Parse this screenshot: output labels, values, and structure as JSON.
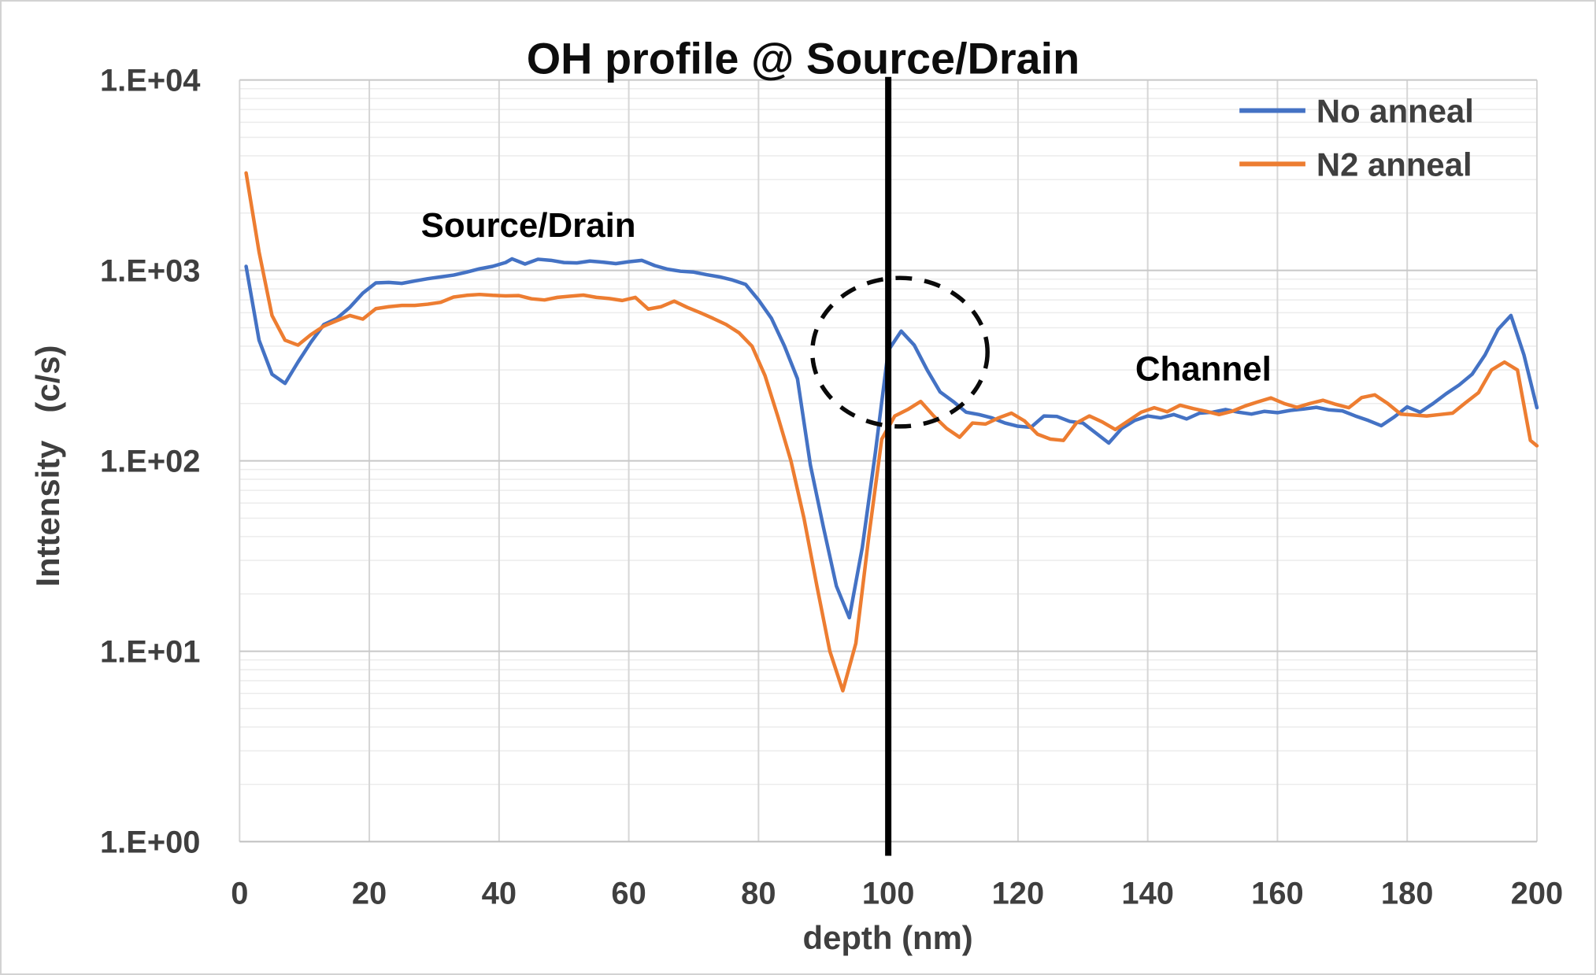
{
  "chart_data": {
    "type": "line",
    "title": "OH profile @ Source/Drain",
    "xlabel": "depth (nm)",
    "ylabel": "Inttensity   (c/s)",
    "x_axis": {
      "min": 0,
      "max": 200,
      "tick_step": 20,
      "tick_labels": [
        "0",
        "20",
        "40",
        "60",
        "80",
        "100",
        "120",
        "140",
        "160",
        "180",
        "200"
      ]
    },
    "y_axis": {
      "scale": "log",
      "min": 1,
      "max": 10000,
      "tick_labels": [
        "1.E+00",
        "1.E+01",
        "1.E+02",
        "1.E+03",
        "1.E+04"
      ]
    },
    "grid": {
      "major_horizontal": true,
      "minor_log_horizontal": true,
      "vertical": true
    },
    "legend_position": "top-right",
    "series": [
      {
        "name": "No anneal",
        "color": "#4472C4",
        "points": [
          [
            1,
            1050
          ],
          [
            3,
            430
          ],
          [
            5,
            285
          ],
          [
            7,
            255
          ],
          [
            9,
            330
          ],
          [
            11,
            420
          ],
          [
            13,
            520
          ],
          [
            15,
            560
          ],
          [
            17,
            640
          ],
          [
            19,
            760
          ],
          [
            21,
            860
          ],
          [
            23,
            865
          ],
          [
            25,
            855
          ],
          [
            27,
            880
          ],
          [
            29,
            905
          ],
          [
            31,
            925
          ],
          [
            33,
            945
          ],
          [
            35,
            980
          ],
          [
            37,
            1020
          ],
          [
            39,
            1050
          ],
          [
            41,
            1100
          ],
          [
            42,
            1150
          ],
          [
            44,
            1080
          ],
          [
            46,
            1145
          ],
          [
            48,
            1130
          ],
          [
            50,
            1100
          ],
          [
            52,
            1095
          ],
          [
            54,
            1120
          ],
          [
            56,
            1105
          ],
          [
            58,
            1085
          ],
          [
            60,
            1110
          ],
          [
            62,
            1130
          ],
          [
            64,
            1060
          ],
          [
            66,
            1015
          ],
          [
            68,
            990
          ],
          [
            70,
            980
          ],
          [
            72,
            950
          ],
          [
            74,
            925
          ],
          [
            76,
            890
          ],
          [
            78,
            845
          ],
          [
            80,
            700
          ],
          [
            82,
            560
          ],
          [
            84,
            400
          ],
          [
            86,
            270
          ],
          [
            88,
            95
          ],
          [
            90,
            45
          ],
          [
            92,
            22
          ],
          [
            94,
            15
          ],
          [
            96,
            35
          ],
          [
            98,
            110
          ],
          [
            100,
            380
          ],
          [
            102,
            480
          ],
          [
            104,
            405
          ],
          [
            106,
            300
          ],
          [
            108,
            230
          ],
          [
            110,
            205
          ],
          [
            112,
            180
          ],
          [
            114,
            175
          ],
          [
            116,
            168
          ],
          [
            118,
            158
          ],
          [
            120,
            152
          ],
          [
            122,
            150
          ],
          [
            124,
            172
          ],
          [
            126,
            171
          ],
          [
            128,
            161
          ],
          [
            130,
            158
          ],
          [
            132,
            140
          ],
          [
            134,
            124
          ],
          [
            136,
            148
          ],
          [
            138,
            163
          ],
          [
            140,
            172
          ],
          [
            142,
            168
          ],
          [
            144,
            175
          ],
          [
            146,
            166
          ],
          [
            148,
            178
          ],
          [
            150,
            180
          ],
          [
            152,
            186
          ],
          [
            154,
            180
          ],
          [
            156,
            176
          ],
          [
            158,
            182
          ],
          [
            160,
            179
          ],
          [
            162,
            184
          ],
          [
            164,
            187
          ],
          [
            166,
            191
          ],
          [
            168,
            185
          ],
          [
            170,
            183
          ],
          [
            172,
            172
          ],
          [
            174,
            163
          ],
          [
            176,
            153
          ],
          [
            178,
            170
          ],
          [
            180,
            192
          ],
          [
            182,
            180
          ],
          [
            184,
            200
          ],
          [
            186,
            225
          ],
          [
            188,
            250
          ],
          [
            190,
            285
          ],
          [
            192,
            360
          ],
          [
            194,
            490
          ],
          [
            196,
            580
          ],
          [
            198,
            360
          ],
          [
            200,
            190
          ]
        ]
      },
      {
        "name": "N2 anneal",
        "color": "#ED7D31",
        "points": [
          [
            1,
            3250
          ],
          [
            3,
            1250
          ],
          [
            5,
            580
          ],
          [
            7,
            430
          ],
          [
            9,
            405
          ],
          [
            11,
            460
          ],
          [
            13,
            510
          ],
          [
            15,
            545
          ],
          [
            17,
            580
          ],
          [
            19,
            555
          ],
          [
            21,
            630
          ],
          [
            23,
            645
          ],
          [
            25,
            655
          ],
          [
            27,
            655
          ],
          [
            29,
            665
          ],
          [
            31,
            680
          ],
          [
            33,
            725
          ],
          [
            35,
            740
          ],
          [
            37,
            748
          ],
          [
            39,
            740
          ],
          [
            41,
            735
          ],
          [
            43,
            738
          ],
          [
            45,
            710
          ],
          [
            47,
            700
          ],
          [
            49,
            722
          ],
          [
            51,
            732
          ],
          [
            53,
            742
          ],
          [
            55,
            722
          ],
          [
            57,
            712
          ],
          [
            59,
            695
          ],
          [
            61,
            722
          ],
          [
            63,
            627
          ],
          [
            65,
            645
          ],
          [
            67,
            690
          ],
          [
            69,
            640
          ],
          [
            71,
            600
          ],
          [
            73,
            560
          ],
          [
            75,
            520
          ],
          [
            77,
            470
          ],
          [
            79,
            400
          ],
          [
            81,
            280
          ],
          [
            83,
            170
          ],
          [
            85,
            100
          ],
          [
            87,
            50
          ],
          [
            89,
            22
          ],
          [
            91,
            10
          ],
          [
            93,
            6.2
          ],
          [
            95,
            11
          ],
          [
            97,
            40
          ],
          [
            99,
            130
          ],
          [
            101,
            172
          ],
          [
            103,
            186
          ],
          [
            105,
            205
          ],
          [
            107,
            172
          ],
          [
            109,
            148
          ],
          [
            111,
            133
          ],
          [
            113,
            158
          ],
          [
            115,
            156
          ],
          [
            117,
            168
          ],
          [
            119,
            178
          ],
          [
            121,
            162
          ],
          [
            123,
            138
          ],
          [
            125,
            130
          ],
          [
            127,
            128
          ],
          [
            129,
            158
          ],
          [
            131,
            172
          ],
          [
            133,
            160
          ],
          [
            135,
            146
          ],
          [
            137,
            162
          ],
          [
            139,
            180
          ],
          [
            141,
            190
          ],
          [
            143,
            181
          ],
          [
            145,
            196
          ],
          [
            147,
            188
          ],
          [
            149,
            182
          ],
          [
            151,
            175
          ],
          [
            153,
            182
          ],
          [
            155,
            194
          ],
          [
            157,
            204
          ],
          [
            159,
            214
          ],
          [
            161,
            200
          ],
          [
            163,
            191
          ],
          [
            165,
            200
          ],
          [
            167,
            208
          ],
          [
            169,
            198
          ],
          [
            171,
            190
          ],
          [
            173,
            215
          ],
          [
            175,
            222
          ],
          [
            177,
            200
          ],
          [
            179,
            176
          ],
          [
            181,
            174
          ],
          [
            183,
            172
          ],
          [
            185,
            175
          ],
          [
            187,
            178
          ],
          [
            189,
            202
          ],
          [
            191,
            228
          ],
          [
            193,
            300
          ],
          [
            195,
            330
          ],
          [
            197,
            300
          ],
          [
            199,
            128
          ],
          [
            200,
            120
          ]
        ]
      }
    ],
    "annotations": {
      "source_drain_label": {
        "text": "Source/Drain",
        "depth": 43,
        "intensity": 1600
      },
      "channel_label": {
        "text": "Channel",
        "depth": 148.5,
        "intensity": 290
      },
      "vertical_line": {
        "depth": 100,
        "color": "#000000"
      },
      "dashed_circle": {
        "center_depth": 101.8,
        "center_intensity": 372,
        "radius_nm": 13.5,
        "radius_decades": 0.39,
        "color": "#0a0a0a"
      }
    },
    "colors": {
      "grid_minor": "#ececec",
      "grid_major": "#c8c8c8",
      "grid_vertical": "#d6d6d6",
      "axis_line": "#bfbfbf"
    }
  }
}
